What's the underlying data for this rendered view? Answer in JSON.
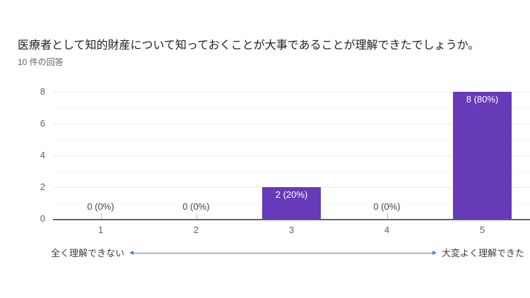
{
  "header": {
    "title": "医療者として知的財産について知っておくことが大事であることが理解できたでしょうか。",
    "subtitle": "10 件の回答"
  },
  "scale": {
    "min_label": "全く理解できない",
    "max_label": "大変よく理解できた"
  },
  "chart_data": {
    "type": "bar",
    "title": "医療者として知的財産について知っておくことが大事であることが理解できたでしょうか。",
    "subtitle": "10 件の回答",
    "total_responses": 10,
    "categories": [
      "1",
      "2",
      "3",
      "4",
      "5"
    ],
    "values": [
      0,
      0,
      2,
      0,
      8
    ],
    "value_labels": [
      "0 (0%)",
      "0 (0%)",
      "2 (20%)",
      "0 (0%)",
      "8 (80%)"
    ],
    "xlabel": "",
    "ylabel": "",
    "ylim": [
      0,
      8
    ],
    "yticks": [
      "0",
      "2",
      "4",
      "6",
      "8"
    ],
    "grid": true,
    "legend_position": "none",
    "bar_color": "#673ab7",
    "axis_label_color": "#616161",
    "scale_arrow_color": "#4c7bd9",
    "scale_min_label": "全く理解できない",
    "scale_max_label": "大変よく理解できた"
  }
}
